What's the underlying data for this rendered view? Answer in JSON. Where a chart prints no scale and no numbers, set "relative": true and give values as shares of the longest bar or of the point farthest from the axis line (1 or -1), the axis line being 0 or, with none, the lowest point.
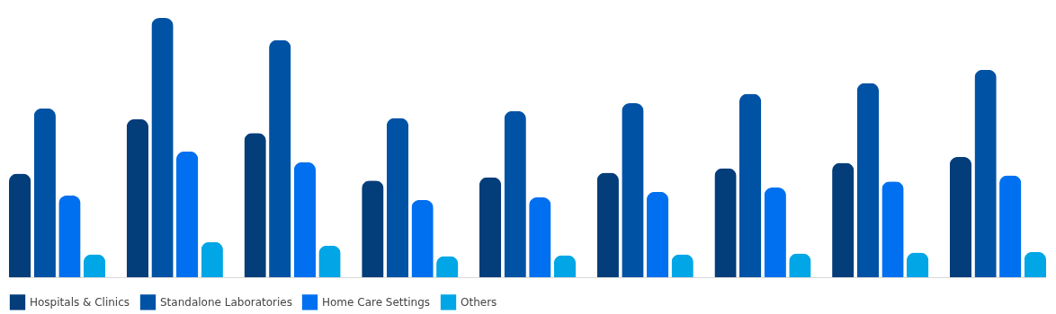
{
  "chart_data": {
    "type": "bar",
    "relative": true,
    "legend": "bottom",
    "categories": [
      null,
      null,
      null,
      null,
      null,
      null,
      null,
      null,
      null
    ],
    "series": [
      {
        "name": "Hospitals & Clinics",
        "color": "#033d7a",
        "values": [
          0.4,
          0.61,
          0.556,
          0.373,
          0.386,
          0.403,
          0.42,
          0.441,
          0.464
        ]
      },
      {
        "name": "Standalone Laboratories",
        "color": "#0052a5",
        "values": [
          0.651,
          1,
          0.915,
          0.614,
          0.641,
          0.671,
          0.708,
          0.749,
          0.8
        ]
      },
      {
        "name": "Home Care Settings",
        "color": "#0070f0",
        "values": [
          0.315,
          0.485,
          0.444,
          0.298,
          0.308,
          0.329,
          0.346,
          0.369,
          0.393
        ]
      },
      {
        "name": "Others",
        "color": "#00a6e6",
        "values": [
          0.088,
          0.136,
          0.122,
          0.081,
          0.085,
          0.088,
          0.092,
          0.095,
          0.098
        ]
      }
    ]
  }
}
